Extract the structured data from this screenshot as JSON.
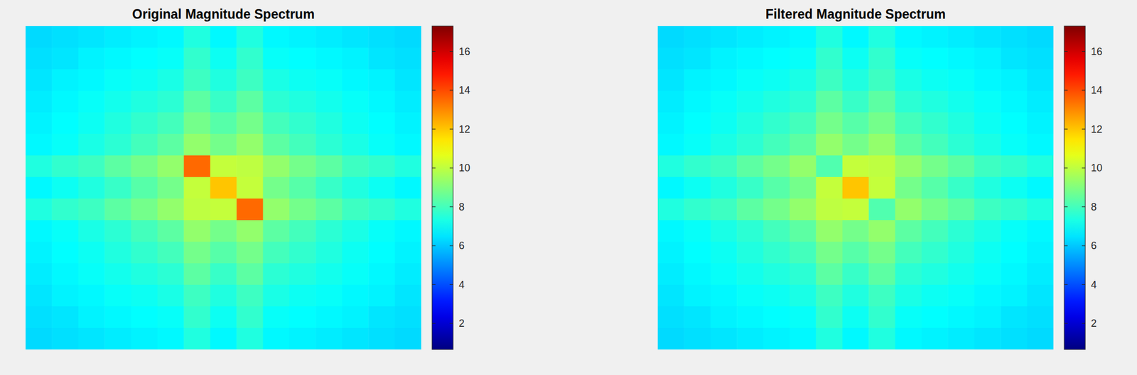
{
  "chart_data": [
    {
      "type": "heatmap",
      "title": "Original Magnitude Spectrum",
      "tick_labels": false,
      "color_range": [
        0.66,
        17.3
      ],
      "color_ticks": [
        2,
        4,
        6,
        8,
        10,
        12,
        14,
        16
      ],
      "cells": [
        [
          6.3,
          6.4,
          6.5,
          6.6,
          6.7,
          6.8,
          7.4,
          6.8,
          7.4,
          6.8,
          6.7,
          6.6,
          6.5,
          6.4,
          6.3
        ],
        [
          6.4,
          6.5,
          6.7,
          6.8,
          6.9,
          7.0,
          7.7,
          7.1,
          7.7,
          7.0,
          6.9,
          6.8,
          6.7,
          6.5,
          6.4
        ],
        [
          6.5,
          6.7,
          6.8,
          7.0,
          7.1,
          7.3,
          7.9,
          7.4,
          7.9,
          7.3,
          7.1,
          7.0,
          6.8,
          6.7,
          6.5
        ],
        [
          6.6,
          6.8,
          7.0,
          7.2,
          7.4,
          7.6,
          8.4,
          7.8,
          8.4,
          7.6,
          7.4,
          7.2,
          7.0,
          6.8,
          6.6
        ],
        [
          6.7,
          6.9,
          7.1,
          7.4,
          7.7,
          8.0,
          8.8,
          8.3,
          8.8,
          8.0,
          7.7,
          7.4,
          7.1,
          6.9,
          6.7
        ],
        [
          6.8,
          7.0,
          7.3,
          7.6,
          8.0,
          8.4,
          9.3,
          8.8,
          9.3,
          8.4,
          8.0,
          7.6,
          7.3,
          7.0,
          6.8
        ],
        [
          7.4,
          7.7,
          7.9,
          8.4,
          8.8,
          9.3,
          13.5,
          10.1,
          10.0,
          9.3,
          8.8,
          8.4,
          7.9,
          7.7,
          7.4
        ],
        [
          6.8,
          7.1,
          7.4,
          7.8,
          8.3,
          8.8,
          10.1,
          12.0,
          10.1,
          8.8,
          8.3,
          7.8,
          7.4,
          7.1,
          6.8
        ],
        [
          7.4,
          7.7,
          7.9,
          8.4,
          8.8,
          9.3,
          10.0,
          10.1,
          13.5,
          9.3,
          8.8,
          8.4,
          7.9,
          7.7,
          7.4
        ],
        [
          6.8,
          7.0,
          7.3,
          7.6,
          8.0,
          8.4,
          9.3,
          8.8,
          9.3,
          8.4,
          8.0,
          7.6,
          7.3,
          7.0,
          6.8
        ],
        [
          6.7,
          6.9,
          7.1,
          7.4,
          7.7,
          8.0,
          8.8,
          8.3,
          8.8,
          8.0,
          7.7,
          7.4,
          7.1,
          6.9,
          6.7
        ],
        [
          6.6,
          6.8,
          7.0,
          7.2,
          7.4,
          7.6,
          8.4,
          7.8,
          8.4,
          7.6,
          7.4,
          7.2,
          7.0,
          6.8,
          6.6
        ],
        [
          6.5,
          6.7,
          6.8,
          7.0,
          7.1,
          7.3,
          7.9,
          7.4,
          7.9,
          7.3,
          7.1,
          7.0,
          6.8,
          6.7,
          6.5
        ],
        [
          6.4,
          6.5,
          6.7,
          6.8,
          6.9,
          7.0,
          7.7,
          7.1,
          7.7,
          7.0,
          6.9,
          6.8,
          6.7,
          6.5,
          6.4
        ],
        [
          6.3,
          6.4,
          6.5,
          6.6,
          6.7,
          6.8,
          7.4,
          6.8,
          7.4,
          6.8,
          6.7,
          6.6,
          6.5,
          6.4,
          6.3
        ]
      ]
    },
    {
      "type": "heatmap",
      "title": "Filtered Magnitude Spectrum",
      "tick_labels": false,
      "color_range": [
        0.66,
        17.3
      ],
      "color_ticks": [
        2,
        4,
        6,
        8,
        10,
        12,
        14,
        16
      ],
      "cells": [
        [
          6.3,
          6.4,
          6.5,
          6.6,
          6.7,
          6.8,
          7.4,
          6.8,
          7.4,
          6.8,
          6.7,
          6.6,
          6.5,
          6.4,
          6.3
        ],
        [
          6.4,
          6.5,
          6.7,
          6.8,
          6.9,
          7.0,
          7.7,
          7.1,
          7.7,
          7.0,
          6.9,
          6.8,
          6.7,
          6.5,
          6.4
        ],
        [
          6.5,
          6.7,
          6.8,
          7.0,
          7.1,
          7.3,
          7.9,
          7.4,
          7.9,
          7.3,
          7.1,
          7.0,
          6.8,
          6.7,
          6.5
        ],
        [
          6.6,
          6.8,
          7.0,
          7.2,
          7.4,
          7.6,
          8.4,
          7.8,
          8.4,
          7.6,
          7.4,
          7.2,
          7.0,
          6.8,
          6.6
        ],
        [
          6.7,
          6.9,
          7.1,
          7.4,
          7.7,
          8.0,
          8.8,
          8.3,
          8.8,
          8.0,
          7.7,
          7.4,
          7.1,
          6.9,
          6.7
        ],
        [
          6.8,
          7.0,
          7.3,
          7.6,
          8.0,
          8.4,
          9.3,
          8.8,
          9.3,
          8.4,
          8.0,
          7.6,
          7.3,
          7.0,
          6.8
        ],
        [
          7.4,
          7.7,
          7.9,
          8.4,
          8.8,
          9.3,
          8.2,
          10.1,
          10.0,
          9.3,
          8.8,
          8.4,
          7.9,
          7.7,
          7.4
        ],
        [
          6.8,
          7.1,
          7.4,
          7.8,
          8.3,
          8.8,
          10.1,
          12.0,
          10.1,
          8.8,
          8.3,
          7.8,
          7.4,
          7.1,
          6.8
        ],
        [
          7.4,
          7.7,
          7.9,
          8.4,
          8.8,
          9.3,
          10.0,
          10.1,
          8.2,
          9.3,
          8.8,
          8.4,
          7.9,
          7.7,
          7.4
        ],
        [
          6.8,
          7.0,
          7.3,
          7.6,
          8.0,
          8.4,
          9.3,
          8.8,
          9.3,
          8.4,
          8.0,
          7.6,
          7.3,
          7.0,
          6.8
        ],
        [
          6.7,
          6.9,
          7.1,
          7.4,
          7.7,
          8.0,
          8.8,
          8.3,
          8.8,
          8.0,
          7.7,
          7.4,
          7.1,
          6.9,
          6.7
        ],
        [
          6.6,
          6.8,
          7.0,
          7.2,
          7.4,
          7.6,
          8.4,
          7.8,
          8.4,
          7.6,
          7.4,
          7.2,
          7.0,
          6.8,
          6.6
        ],
        [
          6.5,
          6.7,
          6.8,
          7.0,
          7.1,
          7.3,
          7.9,
          7.4,
          7.9,
          7.3,
          7.1,
          7.0,
          6.8,
          6.7,
          6.5
        ],
        [
          6.4,
          6.5,
          6.7,
          6.8,
          6.9,
          7.0,
          7.7,
          7.1,
          7.7,
          7.0,
          6.9,
          6.8,
          6.7,
          6.5,
          6.4
        ],
        [
          6.3,
          6.4,
          6.5,
          6.6,
          6.7,
          6.8,
          7.4,
          6.8,
          7.4,
          6.8,
          6.7,
          6.6,
          6.5,
          6.4,
          6.3
        ]
      ]
    }
  ]
}
